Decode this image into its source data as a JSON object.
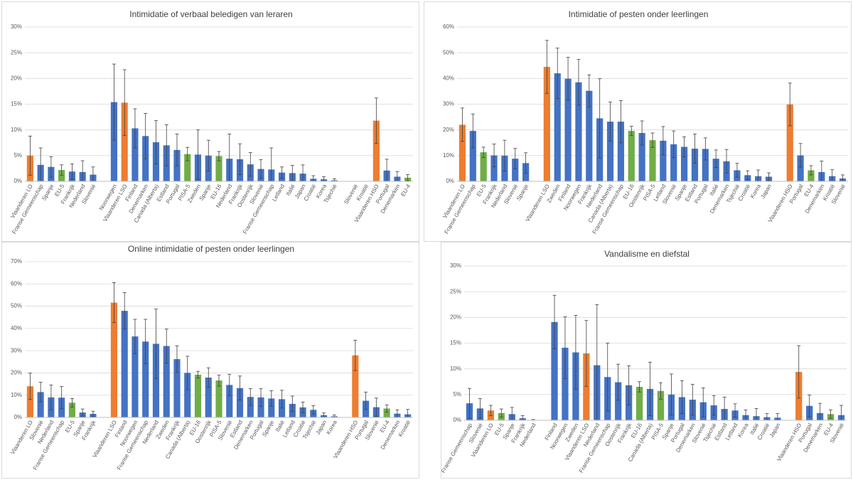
{
  "colors": {
    "primary": "#4472C4",
    "highlight": "#ED7D31",
    "average": "#70AD47",
    "grid": "#d9d9d9",
    "errorbar": "#404040"
  },
  "chart_data": [
    {
      "type": "bar",
      "title": "Intimidatie of verbaal beledigen van leraren",
      "ylim": [
        0,
        30
      ],
      "yticks": [
        "0%",
        "5%",
        "10%",
        "15%",
        "20%",
        "25%",
        "30%"
      ],
      "grid": true,
      "error_bars": true,
      "categories": [
        "Vlaanderen LO",
        "Franse Gemeenschap",
        "Spanje",
        "EU-5",
        "Frankrijk",
        "Nederland",
        "Slovenië",
        "",
        "Noorwegen",
        "Vlaanderen LSO",
        "Finland",
        "Denemarken",
        "Canada (Alberta)",
        "Estland",
        "Portugal",
        "PISA-5",
        "Zweden",
        "Spanje",
        "EU-16",
        "Nederland",
        "Frankrijk",
        "Oostenrijk",
        "Slovenië",
        "Franse Gemeenschap",
        "Letland",
        "Italië",
        "Japan",
        "Croatië",
        "Korea",
        "Tsjechië",
        "",
        "Slovenië",
        "Kroatië",
        "Vlaanderen HSO",
        "Portugal",
        "Denemarken",
        "EU-4"
      ],
      "values": [
        5.0,
        3.2,
        2.8,
        2.2,
        1.9,
        1.8,
        1.3,
        null,
        15.4,
        15.3,
        10.3,
        8.8,
        7.6,
        7.0,
        6.1,
        5.3,
        5.2,
        5.0,
        4.9,
        4.4,
        4.3,
        3.3,
        2.4,
        2.3,
        1.7,
        1.6,
        1.5,
        0.5,
        0.4,
        0.2,
        null,
        0.0,
        0.0,
        11.8,
        2.1,
        0.9,
        0.7
      ],
      "errors": [
        3.8,
        3.3,
        2.0,
        1.0,
        1.5,
        2.2,
        1.5,
        null,
        7.4,
        6.4,
        3.8,
        4.4,
        4.2,
        4.0,
        3.1,
        1.3,
        4.8,
        3.0,
        0.9,
        4.8,
        3.0,
        2.3,
        1.8,
        4.2,
        1.1,
        1.5,
        1.7,
        0.6,
        0.5,
        0.3,
        null,
        0.0,
        0.0,
        4.4,
        2.2,
        1.0,
        0.6
      ],
      "colors": [
        "#ED7D31",
        "#4472C4",
        "#4472C4",
        "#70AD47",
        "#4472C4",
        "#4472C4",
        "#4472C4",
        null,
        "#4472C4",
        "#ED7D31",
        "#4472C4",
        "#4472C4",
        "#4472C4",
        "#4472C4",
        "#4472C4",
        "#70AD47",
        "#4472C4",
        "#4472C4",
        "#70AD47",
        "#4472C4",
        "#4472C4",
        "#4472C4",
        "#4472C4",
        "#4472C4",
        "#4472C4",
        "#4472C4",
        "#4472C4",
        "#4472C4",
        "#4472C4",
        "#4472C4",
        null,
        "#4472C4",
        "#4472C4",
        "#ED7D31",
        "#4472C4",
        "#4472C4",
        "#70AD47"
      ]
    },
    {
      "type": "bar",
      "title": "Intimidatie of pesten onder leerlingen",
      "ylim": [
        0,
        60
      ],
      "yticks": [
        "0%",
        "10%",
        "20%",
        "30%",
        "40%",
        "50%",
        "60%"
      ],
      "grid": true,
      "error_bars": true,
      "categories": [
        "Vlaanderen LO",
        "Franse Gemeenschap",
        "EU-5",
        "Frankrijk",
        "Nederland",
        "Slovenië",
        "Spanje",
        "",
        "Vlaanderen LSO",
        "Zweden",
        "Finland",
        "Noorwegen",
        "Frankrijk",
        "Nederland",
        "Canada (Alberta)",
        "Franse Gemeenschap",
        "EU-16",
        "Oostenrijk",
        "PISA-5",
        "Letland",
        "Slovenië",
        "Spanje",
        "Estland",
        "Portugal",
        "Italië",
        "Denemarken",
        "Tsjechië",
        "Croatië",
        "Korea",
        "Japan",
        "",
        "Vlaanderen HSO",
        "Portugal",
        "EU-4",
        "Denemarken",
        "Kroatië",
        "Slovenië"
      ],
      "values": [
        22.0,
        19.6,
        11.3,
        10.1,
        10.0,
        8.8,
        7.1,
        null,
        44.5,
        42.0,
        39.9,
        38.5,
        35.2,
        24.5,
        23.2,
        23.2,
        19.6,
        18.8,
        16.0,
        15.8,
        14.4,
        13.4,
        12.7,
        12.6,
        8.8,
        7.8,
        4.3,
        2.4,
        2.0,
        1.8,
        null,
        29.9,
        10.1,
        4.3,
        3.6,
        2.0,
        1.1
      ],
      "errors": [
        6.5,
        6.6,
        2.0,
        4.4,
        6.0,
        4.0,
        4.0,
        null,
        10.3,
        9.8,
        8.3,
        8.9,
        6.2,
        15.4,
        7.6,
        8.2,
        1.8,
        4.7,
        2.8,
        5.5,
        5.2,
        3.9,
        5.7,
        4.3,
        3.4,
        4.6,
        2.7,
        1.7,
        2.4,
        1.5,
        null,
        8.3,
        4.6,
        1.8,
        4.3,
        2.5,
        1.4
      ],
      "colors": [
        "#ED7D31",
        "#4472C4",
        "#70AD47",
        "#4472C4",
        "#4472C4",
        "#4472C4",
        "#4472C4",
        null,
        "#ED7D31",
        "#4472C4",
        "#4472C4",
        "#4472C4",
        "#4472C4",
        "#4472C4",
        "#4472C4",
        "#4472C4",
        "#70AD47",
        "#4472C4",
        "#70AD47",
        "#4472C4",
        "#4472C4",
        "#4472C4",
        "#4472C4",
        "#4472C4",
        "#4472C4",
        "#4472C4",
        "#4472C4",
        "#4472C4",
        "#4472C4",
        "#4472C4",
        null,
        "#ED7D31",
        "#4472C4",
        "#70AD47",
        "#4472C4",
        "#4472C4",
        "#4472C4"
      ]
    },
    {
      "type": "bar",
      "title": "Online intimidatie of pesten onder leerlingen",
      "ylim": [
        0,
        70
      ],
      "yticks": [
        "0%",
        "10%",
        "20%",
        "30%",
        "40%",
        "50%",
        "60%",
        "70%"
      ],
      "grid": true,
      "error_bars": true,
      "categories": [
        "Vlaanderen LO",
        "Slovenië",
        "Nederland",
        "Franse Gemeenschap",
        "EU-5",
        "Spanje",
        "Frankrijk",
        "",
        "Vlaanderen LSO",
        "Finland",
        "Noorwegen",
        "Franse Gemeenschap",
        "Nederland",
        "Zweden",
        "Frankrijk",
        "Canada (Alberta)",
        "EU-16",
        "Oostenrijk",
        "PISA-5",
        "Slovenië",
        "Estland",
        "Denemarken",
        "Portugal",
        "Spanje",
        "Italië",
        "Letland",
        "Croatië",
        "Tsjechië",
        "Japan",
        "Korea",
        "",
        "Vlaanderen HSO",
        "Portugal",
        "Slovenië",
        "EU-4",
        "Denemarken",
        "Kroatië"
      ],
      "values": [
        14.0,
        11.4,
        9.0,
        8.9,
        6.6,
        2.2,
        1.6,
        null,
        51.6,
        47.9,
        36.4,
        34.1,
        33.1,
        32.1,
        26.2,
        20.0,
        19.2,
        17.9,
        16.6,
        14.6,
        13.2,
        9.2,
        9.0,
        8.5,
        8.2,
        6.1,
        4.5,
        3.4,
        1.0,
        0.5,
        null,
        27.9,
        7.5,
        4.6,
        4.0,
        1.7,
        1.4
      ],
      "errors": [
        5.9,
        4.4,
        5.6,
        5.0,
        1.9,
        1.6,
        1.2,
        null,
        9.0,
        8.2,
        7.7,
        10.0,
        15.6,
        7.6,
        6.0,
        7.5,
        1.5,
        4.4,
        2.5,
        4.8,
        5.4,
        3.8,
        4.0,
        3.5,
        4.0,
        3.5,
        2.4,
        1.9,
        1.0,
        0.6,
        null,
        6.8,
        3.9,
        4.1,
        1.6,
        1.7,
        2.2
      ],
      "colors": [
        "#ED7D31",
        "#4472C4",
        "#4472C4",
        "#4472C4",
        "#70AD47",
        "#4472C4",
        "#4472C4",
        null,
        "#ED7D31",
        "#4472C4",
        "#4472C4",
        "#4472C4",
        "#4472C4",
        "#4472C4",
        "#4472C4",
        "#4472C4",
        "#70AD47",
        "#4472C4",
        "#70AD47",
        "#4472C4",
        "#4472C4",
        "#4472C4",
        "#4472C4",
        "#4472C4",
        "#4472C4",
        "#4472C4",
        "#4472C4",
        "#4472C4",
        "#4472C4",
        "#4472C4",
        null,
        "#ED7D31",
        "#4472C4",
        "#4472C4",
        "#70AD47",
        "#4472C4",
        "#4472C4"
      ]
    },
    {
      "type": "bar",
      "title": "Vandalisme en diefstal",
      "ylim": [
        0,
        30
      ],
      "yticks": [
        "0%",
        "5%",
        "10%",
        "15%",
        "20%",
        "25%",
        "30%"
      ],
      "grid": true,
      "error_bars": true,
      "categories": [
        "Franse Gemeenschap",
        "Slovenië",
        "Vlaanderen LO",
        "EU-5",
        "Spanje",
        "Frankrijk",
        "Nederland",
        "",
        "Finland",
        "Noorwegen",
        "Zweden",
        "Vlaanderen LSO",
        "Nederland",
        "Franse Gemeenschap",
        "Oostenrijk",
        "Frankrijk",
        "EU-16",
        "Canada (Alberta)",
        "PISA-5",
        "Spanje",
        "Portugal",
        "Denemarken",
        "Slovenië",
        "Tsjechië",
        "Estland",
        "Letland",
        "Korea",
        "Italië",
        "Croatië",
        "Japan",
        "",
        "Vlaanderen HSO",
        "Portugal",
        "Denemarken",
        "EU-4",
        "Slovenië"
      ],
      "values": [
        3.3,
        2.3,
        1.9,
        1.4,
        1.2,
        0.4,
        0.05,
        null,
        19.1,
        14.1,
        13.2,
        13.0,
        10.7,
        8.4,
        7.4,
        6.8,
        6.5,
        6.1,
        5.7,
        5.0,
        4.5,
        4.0,
        3.5,
        2.9,
        2.2,
        1.9,
        1.0,
        0.8,
        0.6,
        0.5,
        null,
        9.4,
        2.8,
        1.4,
        1.2,
        1.0
      ],
      "errors": [
        2.9,
        1.9,
        1.0,
        0.8,
        1.3,
        0.5,
        0.1,
        null,
        5.2,
        6.0,
        7.2,
        6.4,
        11.8,
        6.6,
        3.5,
        3.8,
        1.0,
        5.2,
        1.6,
        4.0,
        3.2,
        3.0,
        2.8,
        1.9,
        2.3,
        1.3,
        1.0,
        1.5,
        0.7,
        0.8,
        null,
        5.1,
        2.1,
        1.9,
        0.8,
        1.9
      ],
      "colors": [
        "#4472C4",
        "#4472C4",
        "#ED7D31",
        "#70AD47",
        "#4472C4",
        "#4472C4",
        "#4472C4",
        null,
        "#4472C4",
        "#4472C4",
        "#4472C4",
        "#ED7D31",
        "#4472C4",
        "#4472C4",
        "#4472C4",
        "#4472C4",
        "#70AD47",
        "#4472C4",
        "#70AD47",
        "#4472C4",
        "#4472C4",
        "#4472C4",
        "#4472C4",
        "#4472C4",
        "#4472C4",
        "#4472C4",
        "#4472C4",
        "#4472C4",
        "#4472C4",
        "#4472C4",
        null,
        "#ED7D31",
        "#4472C4",
        "#4472C4",
        "#70AD47",
        "#4472C4"
      ]
    }
  ]
}
